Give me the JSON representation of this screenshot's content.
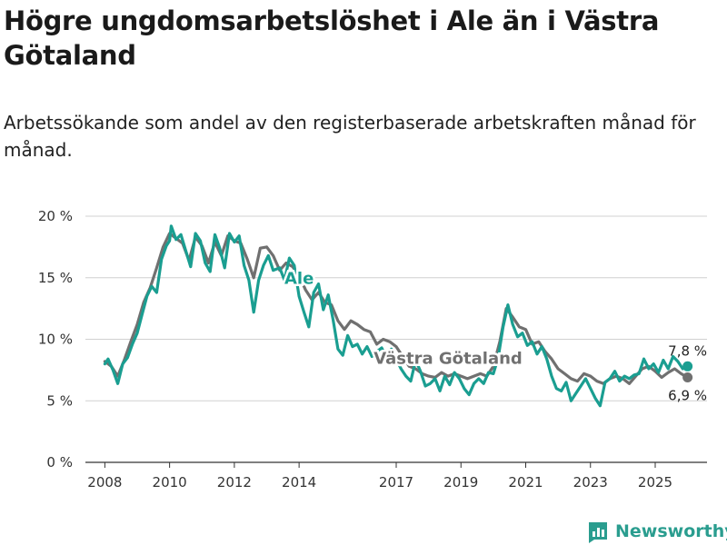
{
  "chart_data": {
    "type": "line",
    "title": "Högre ungdomsarbetslöshet i Ale än i Västra Götaland",
    "subtitle": "Arbetssökande som andel av den registerbaserade arbetskraften månad för månad.",
    "xlabel": "",
    "ylabel": "",
    "ylim": [
      0,
      20
    ],
    "xlim": [
      2007.4,
      2026.6
    ],
    "y_ticks": [
      {
        "value": 0,
        "label": "0 %"
      },
      {
        "value": 5,
        "label": "5 %"
      },
      {
        "value": 10,
        "label": "10 %"
      },
      {
        "value": 15,
        "label": "15 %"
      },
      {
        "value": 20,
        "label": "20 %"
      }
    ],
    "x_ticks": [
      {
        "value": 2008,
        "label": "2008"
      },
      {
        "value": 2010,
        "label": "2010"
      },
      {
        "value": 2012,
        "label": "2012"
      },
      {
        "value": 2014,
        "label": "2014"
      },
      {
        "value": 2017,
        "label": "2017"
      },
      {
        "value": 2019,
        "label": "2019"
      },
      {
        "value": 2021,
        "label": "2021"
      },
      {
        "value": 2023,
        "label": "2023"
      },
      {
        "value": 2025,
        "label": "2025"
      }
    ],
    "grid": true,
    "series": [
      {
        "name": "Västra Götaland",
        "color": "#707070",
        "end_value": 6.9,
        "end_label": "6,9 %",
        "points": [
          [
            2008.0,
            8.2
          ],
          [
            2008.2,
            7.8
          ],
          [
            2008.4,
            7.0
          ],
          [
            2008.6,
            8.3
          ],
          [
            2008.8,
            9.8
          ],
          [
            2009.0,
            11.2
          ],
          [
            2009.2,
            13.0
          ],
          [
            2009.4,
            14.2
          ],
          [
            2009.6,
            15.8
          ],
          [
            2009.8,
            17.5
          ],
          [
            2010.0,
            18.6
          ],
          [
            2010.2,
            18.2
          ],
          [
            2010.4,
            17.8
          ],
          [
            2010.6,
            16.4
          ],
          [
            2010.8,
            18.3
          ],
          [
            2011.0,
            17.6
          ],
          [
            2011.2,
            16.2
          ],
          [
            2011.4,
            17.9
          ],
          [
            2011.6,
            16.8
          ],
          [
            2011.8,
            18.4
          ],
          [
            2012.0,
            18.0
          ],
          [
            2012.2,
            17.8
          ],
          [
            2012.4,
            16.5
          ],
          [
            2012.6,
            15.0
          ],
          [
            2012.8,
            17.4
          ],
          [
            2013.0,
            17.5
          ],
          [
            2013.2,
            16.8
          ],
          [
            2013.4,
            15.6
          ],
          [
            2013.6,
            16.2
          ],
          [
            2013.8,
            15.9
          ],
          [
            2014.0,
            15.2
          ],
          [
            2014.2,
            14.0
          ],
          [
            2014.4,
            13.2
          ],
          [
            2014.6,
            13.8
          ],
          [
            2014.8,
            13.0
          ],
          [
            2015.0,
            12.8
          ],
          [
            2015.2,
            11.5
          ],
          [
            2015.4,
            10.8
          ],
          [
            2015.6,
            11.5
          ],
          [
            2015.8,
            11.2
          ],
          [
            2016.0,
            10.8
          ],
          [
            2016.2,
            10.6
          ],
          [
            2016.4,
            9.6
          ],
          [
            2016.6,
            10.0
          ],
          [
            2016.8,
            9.8
          ],
          [
            2017.0,
            9.4
          ],
          [
            2017.2,
            8.6
          ],
          [
            2017.4,
            7.8
          ],
          [
            2017.6,
            7.6
          ],
          [
            2017.8,
            7.2
          ],
          [
            2018.0,
            7.0
          ],
          [
            2018.2,
            6.9
          ],
          [
            2018.4,
            7.3
          ],
          [
            2018.6,
            7.0
          ],
          [
            2018.8,
            7.2
          ],
          [
            2019.0,
            7.0
          ],
          [
            2019.2,
            6.8
          ],
          [
            2019.4,
            7.0
          ],
          [
            2019.6,
            7.2
          ],
          [
            2019.8,
            7.0
          ],
          [
            2020.0,
            7.8
          ],
          [
            2020.2,
            9.8
          ],
          [
            2020.4,
            12.5
          ],
          [
            2020.6,
            11.8
          ],
          [
            2020.8,
            11.0
          ],
          [
            2021.0,
            10.8
          ],
          [
            2021.2,
            9.6
          ],
          [
            2021.4,
            9.8
          ],
          [
            2021.6,
            9.0
          ],
          [
            2021.8,
            8.4
          ],
          [
            2022.0,
            7.6
          ],
          [
            2022.2,
            7.2
          ],
          [
            2022.4,
            6.8
          ],
          [
            2022.6,
            6.6
          ],
          [
            2022.8,
            7.2
          ],
          [
            2023.0,
            7.0
          ],
          [
            2023.2,
            6.6
          ],
          [
            2023.4,
            6.4
          ],
          [
            2023.6,
            6.8
          ],
          [
            2023.8,
            7.0
          ],
          [
            2024.0,
            6.8
          ],
          [
            2024.2,
            6.4
          ],
          [
            2024.4,
            7.0
          ],
          [
            2024.6,
            7.6
          ],
          [
            2024.8,
            7.8
          ],
          [
            2025.0,
            7.4
          ],
          [
            2025.2,
            6.9
          ],
          [
            2025.4,
            7.3
          ],
          [
            2025.6,
            7.6
          ],
          [
            2025.8,
            7.2
          ],
          [
            2026.0,
            6.9
          ]
        ]
      },
      {
        "name": "Ale",
        "color": "#1a9e91",
        "end_value": 7.8,
        "end_label": "7,8 %",
        "points": [
          [
            2008.0,
            8.0
          ],
          [
            2008.1,
            8.4
          ],
          [
            2008.25,
            7.5
          ],
          [
            2008.4,
            6.4
          ],
          [
            2008.55,
            8.0
          ],
          [
            2008.7,
            8.5
          ],
          [
            2008.85,
            9.6
          ],
          [
            2009.0,
            10.5
          ],
          [
            2009.15,
            12.0
          ],
          [
            2009.3,
            13.5
          ],
          [
            2009.45,
            14.3
          ],
          [
            2009.6,
            13.8
          ],
          [
            2009.75,
            16.5
          ],
          [
            2009.9,
            17.6
          ],
          [
            2010.0,
            18.0
          ],
          [
            2010.05,
            19.2
          ],
          [
            2010.2,
            18.1
          ],
          [
            2010.35,
            18.5
          ],
          [
            2010.5,
            17.2
          ],
          [
            2010.65,
            15.9
          ],
          [
            2010.8,
            18.6
          ],
          [
            2010.95,
            18.0
          ],
          [
            2011.1,
            16.2
          ],
          [
            2011.25,
            15.5
          ],
          [
            2011.4,
            18.5
          ],
          [
            2011.55,
            17.4
          ],
          [
            2011.7,
            15.8
          ],
          [
            2011.85,
            18.6
          ],
          [
            2012.0,
            17.9
          ],
          [
            2012.15,
            18.4
          ],
          [
            2012.3,
            16.0
          ],
          [
            2012.45,
            14.8
          ],
          [
            2012.6,
            12.2
          ],
          [
            2012.75,
            14.8
          ],
          [
            2012.9,
            16.0
          ],
          [
            2013.05,
            16.8
          ],
          [
            2013.2,
            15.6
          ],
          [
            2013.4,
            15.8
          ],
          [
            2013.55,
            14.8
          ],
          [
            2013.7,
            16.6
          ],
          [
            2013.85,
            16.0
          ],
          [
            2014.0,
            13.5
          ],
          [
            2014.15,
            12.2
          ],
          [
            2014.3,
            11.0
          ],
          [
            2014.45,
            13.8
          ],
          [
            2014.6,
            14.5
          ],
          [
            2014.75,
            12.4
          ],
          [
            2014.9,
            13.6
          ],
          [
            2015.05,
            11.6
          ],
          [
            2015.2,
            9.2
          ],
          [
            2015.35,
            8.7
          ],
          [
            2015.5,
            10.3
          ],
          [
            2015.65,
            9.4
          ],
          [
            2015.8,
            9.6
          ],
          [
            2015.95,
            8.8
          ],
          [
            2016.1,
            9.4
          ],
          [
            2016.25,
            8.6
          ],
          [
            2016.4,
            9.0
          ],
          [
            2016.55,
            9.3
          ],
          [
            2016.7,
            8.5
          ],
          [
            2016.85,
            9.2
          ],
          [
            2017.0,
            8.4
          ],
          [
            2017.15,
            7.6
          ],
          [
            2017.3,
            7.0
          ],
          [
            2017.45,
            6.6
          ],
          [
            2017.6,
            8.3
          ],
          [
            2017.75,
            7.4
          ],
          [
            2017.9,
            6.2
          ],
          [
            2018.05,
            6.4
          ],
          [
            2018.2,
            6.8
          ],
          [
            2018.35,
            5.8
          ],
          [
            2018.5,
            7.0
          ],
          [
            2018.65,
            6.3
          ],
          [
            2018.8,
            7.3
          ],
          [
            2018.95,
            6.8
          ],
          [
            2019.1,
            6.0
          ],
          [
            2019.25,
            5.5
          ],
          [
            2019.4,
            6.4
          ],
          [
            2019.55,
            6.8
          ],
          [
            2019.7,
            6.4
          ],
          [
            2019.85,
            7.3
          ],
          [
            2020.0,
            7.2
          ],
          [
            2020.15,
            8.5
          ],
          [
            2020.3,
            11.0
          ],
          [
            2020.45,
            12.8
          ],
          [
            2020.6,
            11.2
          ],
          [
            2020.75,
            10.2
          ],
          [
            2020.9,
            10.5
          ],
          [
            2021.05,
            9.5
          ],
          [
            2021.2,
            9.8
          ],
          [
            2021.35,
            8.8
          ],
          [
            2021.5,
            9.4
          ],
          [
            2021.65,
            8.4
          ],
          [
            2021.8,
            7.0
          ],
          [
            2021.95,
            6.0
          ],
          [
            2022.1,
            5.8
          ],
          [
            2022.25,
            6.5
          ],
          [
            2022.4,
            5.0
          ],
          [
            2022.55,
            5.6
          ],
          [
            2022.7,
            6.2
          ],
          [
            2022.85,
            6.8
          ],
          [
            2023.0,
            6.0
          ],
          [
            2023.15,
            5.2
          ],
          [
            2023.3,
            4.6
          ],
          [
            2023.45,
            6.5
          ],
          [
            2023.6,
            6.8
          ],
          [
            2023.75,
            7.4
          ],
          [
            2023.9,
            6.6
          ],
          [
            2024.05,
            7.0
          ],
          [
            2024.2,
            6.8
          ],
          [
            2024.35,
            7.1
          ],
          [
            2024.5,
            7.2
          ],
          [
            2024.65,
            8.4
          ],
          [
            2024.8,
            7.6
          ],
          [
            2024.95,
            8.0
          ],
          [
            2025.1,
            7.3
          ],
          [
            2025.25,
            8.3
          ],
          [
            2025.4,
            7.6
          ],
          [
            2025.55,
            8.6
          ],
          [
            2025.7,
            8.2
          ],
          [
            2025.85,
            7.6
          ],
          [
            2026.0,
            7.8
          ]
        ]
      }
    ]
  },
  "branding": {
    "name": "Newsworthy",
    "accent": "#2a9d8f"
  }
}
